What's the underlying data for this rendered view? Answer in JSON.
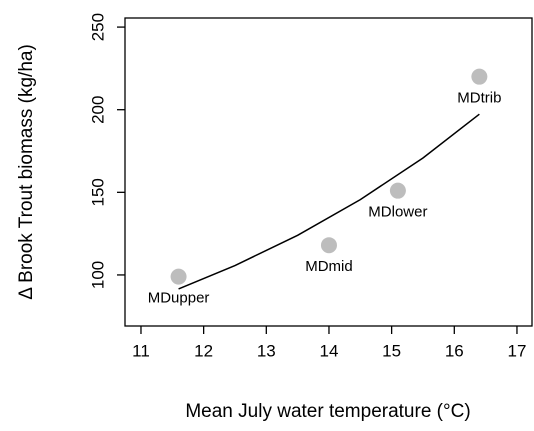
{
  "chart_data": {
    "type": "scatter",
    "x_label": "Mean July water temperature (°C)",
    "y_label": "Δ Brook Trout biomass (kg/ha)",
    "x": [
      11.6,
      14.0,
      15.1,
      16.4
    ],
    "values": [
      99,
      118,
      151,
      220
    ],
    "labels": [
      "MDupper",
      "MDmid",
      "MDlower",
      "MDtrib"
    ],
    "color": "#bdbdbd",
    "curve": {
      "x": [
        11.6,
        12.5,
        13.5,
        14.5,
        15.5,
        16.4
      ],
      "values": [
        91.5,
        105.7,
        124.0,
        145.6,
        170.8,
        197.3
      ],
      "color": "#000000"
    },
    "xlim": [
      10.745,
      17.24
    ],
    "xticks": [
      11,
      12,
      13,
      14,
      15,
      16,
      17
    ],
    "ylim": [
      69.1,
      255.5
    ],
    "yticks": [
      100,
      150,
      200,
      250
    ]
  }
}
